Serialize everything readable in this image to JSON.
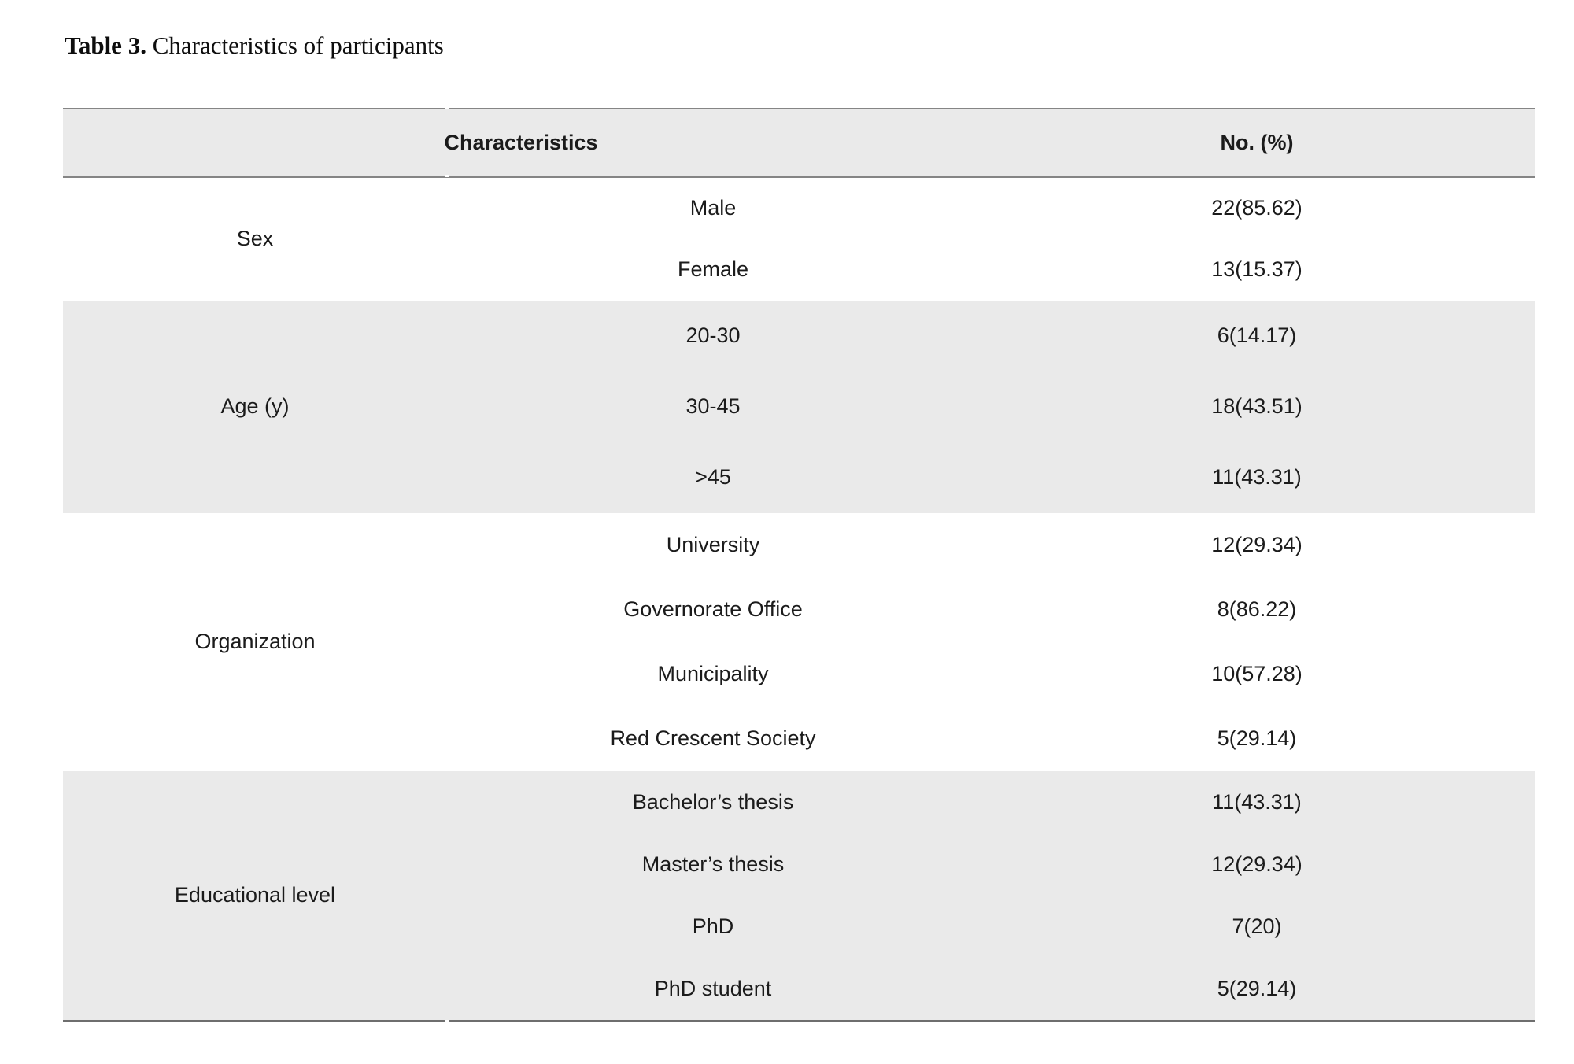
{
  "caption": {
    "prefix": "Table 3.",
    "title": " Characteristics of participants"
  },
  "colors": {
    "band_gray": "#eaeaea",
    "rule_gray": "#858585",
    "bottom_rule_gray": "#6e6e6e",
    "text": "#1b1b1b"
  },
  "table": {
    "header": {
      "characteristics": "Characteristics",
      "value": "No. (%)"
    },
    "groups": [
      {
        "name": "Sex",
        "rows": [
          {
            "label": "Male",
            "value": "22(85.62)"
          },
          {
            "label": "Female",
            "value": "13(15.37)"
          }
        ]
      },
      {
        "name": "Age (y)",
        "rows": [
          {
            "label": "20-30",
            "value": "6(14.17)"
          },
          {
            "label": "30-45",
            "value": "18(43.51)"
          },
          {
            "label": ">45",
            "value": "11(43.31)"
          }
        ]
      },
      {
        "name": "Organization",
        "rows": [
          {
            "label": "University",
            "value": "12(29.34)"
          },
          {
            "label": "Governorate Office",
            "value": "8(86.22)"
          },
          {
            "label": "Municipality",
            "value": "10(57.28)"
          },
          {
            "label": "Red Crescent Society",
            "value": "5(29.14)"
          }
        ]
      },
      {
        "name": "Educational level",
        "rows": [
          {
            "label": "Bachelor’s thesis",
            "value": "11(43.31)"
          },
          {
            "label": "Master’s thesis",
            "value": "12(29.34)"
          },
          {
            "label": "PhD",
            "value": "7(20)"
          },
          {
            "label": "PhD student",
            "value": "5(29.14)"
          }
        ]
      }
    ]
  }
}
